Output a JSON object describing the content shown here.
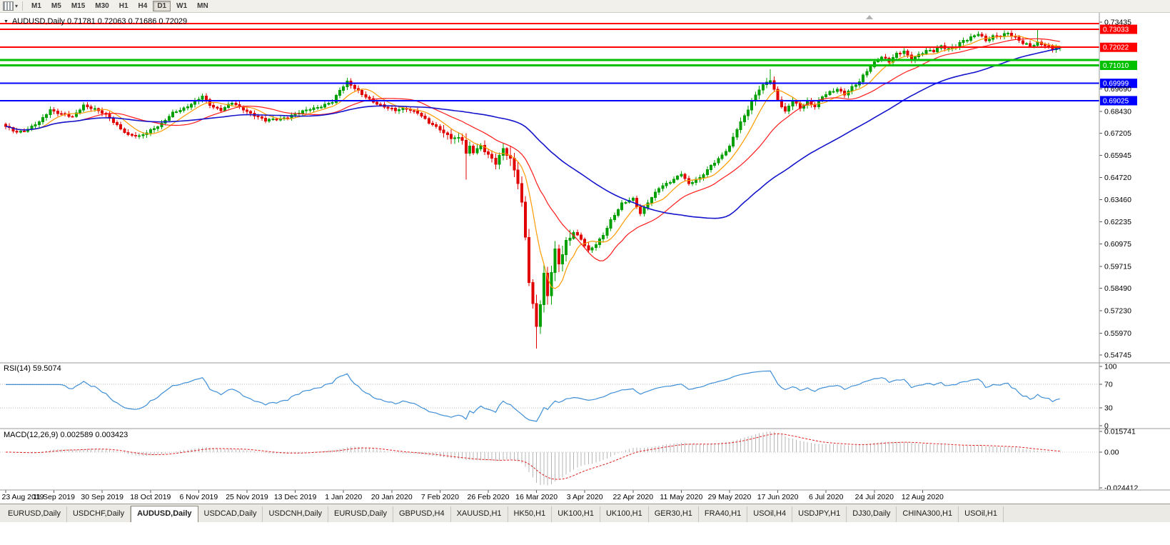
{
  "toolbar": {
    "icons": [
      {
        "name": "chart-window-icon",
        "css": "icon-chart",
        "glyph": ""
      },
      {
        "name": "dropdown-caret-icon",
        "css": "icon-caret",
        "glyph": "▾"
      }
    ],
    "timeframes": [
      {
        "label": "M1",
        "active": false
      },
      {
        "label": "M5",
        "active": false
      },
      {
        "label": "M15",
        "active": false
      },
      {
        "label": "M30",
        "active": false
      },
      {
        "label": "H1",
        "active": false
      },
      {
        "label": "H4",
        "active": false
      },
      {
        "label": "D1",
        "active": true
      },
      {
        "label": "W1",
        "active": false
      },
      {
        "label": "MN",
        "active": false
      }
    ]
  },
  "chart": {
    "title": "AUDUSD,Daily  0.71781 0.72063 0.71686 0.72029",
    "symbol": "AUDUSD",
    "period": "Daily"
  },
  "chart_data": {
    "type": "candlestick",
    "symbol": "AUDUSD",
    "timeframe": "Daily",
    "ohlc_display": {
      "open": "0.71781",
      "high": "0.72063",
      "low": "0.71686",
      "close": "0.72029"
    },
    "last_close": 0.72029,
    "price_range": {
      "top": 0.73435,
      "bottom": 0.54745
    },
    "y_axis_ticks": [
      "0.73435",
      "0.69690",
      "0.68430",
      "0.67205",
      "0.65945",
      "0.64720",
      "0.63460",
      "0.62235",
      "0.60975",
      "0.59715",
      "0.58490",
      "0.57230",
      "0.55970",
      "0.54745"
    ],
    "hlines": [
      {
        "price": 0.7336,
        "color": "#ff0000",
        "width": 2,
        "label": ""
      },
      {
        "price": 0.73033,
        "color": "#ff0000",
        "width": 2,
        "label": "0.73033"
      },
      {
        "price": 0.72022,
        "color": "#ff0000",
        "width": 2,
        "label": "0.72022"
      },
      {
        "price": 0.7131,
        "color": "#00c000",
        "width": 3,
        "label": ""
      },
      {
        "price": 0.7101,
        "color": "#00c000",
        "width": 3,
        "label": "0.71010"
      },
      {
        "price": 0.69999,
        "color": "#0000ff",
        "width": 2,
        "label": "0.69999"
      },
      {
        "price": 0.69025,
        "color": "#0000ff",
        "width": 2,
        "label": "0.69025"
      }
    ],
    "x_labels": [
      "23 Aug 2019",
      "11 Sep 2019",
      "30 Sep 2019",
      "18 Oct 2019",
      "6 Nov 2019",
      "25 Nov 2019",
      "13 Dec 2019",
      "1 Jan 2020",
      "20 Jan 2020",
      "7 Feb 2020",
      "26 Feb 2020",
      "16 Mar 2020",
      "3 Apr 2020",
      "22 Apr 2020",
      "11 May 2020",
      "29 May 2020",
      "17 Jun 2020",
      "6 Jul 2020",
      "24 Jul 2020",
      "12 Aug 2020"
    ],
    "bars_per_label": 13,
    "n_bars": 285,
    "candle_colors": {
      "up": "#00a000",
      "down": "#e00000"
    },
    "moving_averages": [
      {
        "period": 8,
        "color": "#ff9a00"
      },
      {
        "period": 21,
        "color": "#ff1a1a"
      },
      {
        "period": 55,
        "color": "#1414cc"
      }
    ],
    "close_anchors": [
      [
        0,
        0.6755
      ],
      [
        3,
        0.6728
      ],
      [
        6,
        0.6742
      ],
      [
        9,
        0.678
      ],
      [
        12,
        0.6855
      ],
      [
        15,
        0.6828
      ],
      [
        18,
        0.6808
      ],
      [
        21,
        0.688
      ],
      [
        24,
        0.6855
      ],
      [
        27,
        0.682
      ],
      [
        30,
        0.6768
      ],
      [
        33,
        0.6708
      ],
      [
        36,
        0.67
      ],
      [
        39,
        0.674
      ],
      [
        42,
        0.677
      ],
      [
        45,
        0.6832
      ],
      [
        48,
        0.6862
      ],
      [
        51,
        0.6895
      ],
      [
        53,
        0.6925
      ],
      [
        55,
        0.688
      ],
      [
        58,
        0.6852
      ],
      [
        61,
        0.6888
      ],
      [
        64,
        0.6855
      ],
      [
        67,
        0.6822
      ],
      [
        70,
        0.6788
      ],
      [
        73,
        0.68
      ],
      [
        76,
        0.6812
      ],
      [
        79,
        0.6832
      ],
      [
        82,
        0.6858
      ],
      [
        85,
        0.6872
      ],
      [
        88,
        0.6892
      ],
      [
        90,
        0.696
      ],
      [
        92,
        0.7012
      ],
      [
        94,
        0.6975
      ],
      [
        96,
        0.6935
      ],
      [
        99,
        0.6895
      ],
      [
        102,
        0.6872
      ],
      [
        105,
        0.6845
      ],
      [
        108,
        0.6858
      ],
      [
        111,
        0.6838
      ],
      [
        114,
        0.6775
      ],
      [
        117,
        0.6742
      ],
      [
        120,
        0.67
      ],
      [
        123,
        0.668
      ],
      [
        124,
        0.66
      ],
      [
        125,
        0.664
      ],
      [
        126,
        0.6618
      ],
      [
        128,
        0.6655
      ],
      [
        130,
        0.6598
      ],
      [
        132,
        0.6545
      ],
      [
        134,
        0.6628
      ],
      [
        136,
        0.6585
      ],
      [
        138,
        0.646
      ],
      [
        139,
        0.632
      ],
      [
        140,
        0.612
      ],
      [
        141,
        0.588
      ],
      [
        142,
        0.574
      ],
      [
        143,
        0.563
      ],
      [
        144,
        0.578
      ],
      [
        145,
        0.5935
      ],
      [
        146,
        0.582
      ],
      [
        147,
        0.5958
      ],
      [
        148,
        0.6052
      ],
      [
        149,
        0.5975
      ],
      [
        151,
        0.6095
      ],
      [
        153,
        0.6168
      ],
      [
        155,
        0.6128
      ],
      [
        157,
        0.6058
      ],
      [
        159,
        0.6092
      ],
      [
        161,
        0.6148
      ],
      [
        163,
        0.6235
      ],
      [
        166,
        0.6322
      ],
      [
        169,
        0.6348
      ],
      [
        171,
        0.6272
      ],
      [
        173,
        0.6335
      ],
      [
        176,
        0.6408
      ],
      [
        179,
        0.6448
      ],
      [
        182,
        0.6495
      ],
      [
        184,
        0.6432
      ],
      [
        187,
        0.6468
      ],
      [
        190,
        0.6542
      ],
      [
        193,
        0.6592
      ],
      [
        195,
        0.6642
      ],
      [
        197,
        0.6748
      ],
      [
        199,
        0.6822
      ],
      [
        201,
        0.6895
      ],
      [
        203,
        0.6962
      ],
      [
        205,
        0.7005
      ],
      [
        206,
        0.7022
      ],
      [
        208,
        0.6912
      ],
      [
        210,
        0.6838
      ],
      [
        212,
        0.6898
      ],
      [
        214,
        0.6862
      ],
      [
        216,
        0.6905
      ],
      [
        218,
        0.6872
      ],
      [
        220,
        0.6922
      ],
      [
        222,
        0.6945
      ],
      [
        224,
        0.6972
      ],
      [
        226,
        0.6942
      ],
      [
        228,
        0.6975
      ],
      [
        230,
        0.7005
      ],
      [
        232,
        0.7072
      ],
      [
        234,
        0.7122
      ],
      [
        236,
        0.7148
      ],
      [
        238,
        0.7118
      ],
      [
        240,
        0.7162
      ],
      [
        242,
        0.7185
      ],
      [
        244,
        0.7138
      ],
      [
        246,
        0.7155
      ],
      [
        248,
        0.7178
      ],
      [
        250,
        0.7185
      ],
      [
        252,
        0.7215
      ],
      [
        254,
        0.7192
      ],
      [
        256,
        0.7205
      ],
      [
        258,
        0.7238
      ],
      [
        260,
        0.7262
      ],
      [
        262,
        0.7282
      ],
      [
        264,
        0.7235
      ],
      [
        266,
        0.7258
      ],
      [
        268,
        0.7272
      ],
      [
        270,
        0.7288
      ],
      [
        272,
        0.7252
      ],
      [
        274,
        0.7222
      ],
      [
        276,
        0.7208
      ],
      [
        278,
        0.7232
      ],
      [
        280,
        0.7215
      ],
      [
        282,
        0.7188
      ],
      [
        284,
        0.72029
      ]
    ],
    "special_highs": {
      "92": 0.703,
      "124": 0.672,
      "206": 0.7078,
      "278": 0.73
    },
    "special_lows": {
      "124": 0.646,
      "143": 0.551
    },
    "indicators": {
      "rsi": {
        "label": "RSI(14) 59.5074",
        "period": 14,
        "value": 59.5074,
        "levels": [
          "100",
          "70",
          "30",
          "0"
        ],
        "level_lines": [
          70,
          30
        ],
        "color": "#3f8fd6"
      },
      "macd": {
        "label": "MACD(12,26,9) 0.002589 0.003423",
        "fast": 12,
        "slow": 26,
        "signal": 9,
        "main_value": 0.002589,
        "signal_value": 0.003423,
        "axis_labels": [
          "0.015741",
          "0.00",
          "-0.024412"
        ],
        "hist_color": "#b6b6b6",
        "signal_color": "#e02020"
      }
    }
  },
  "tabs": [
    {
      "label": "EURUSD,Daily",
      "active": false
    },
    {
      "label": "USDCHF,Daily",
      "active": false
    },
    {
      "label": "AUDUSD,Daily",
      "active": true
    },
    {
      "label": "USDCAD,Daily",
      "active": false
    },
    {
      "label": "USDCNH,Daily",
      "active": false
    },
    {
      "label": "EURUSD,Daily",
      "active": false
    },
    {
      "label": "GBPUSD,H4",
      "active": false
    },
    {
      "label": "XAUUSD,H1",
      "active": false
    },
    {
      "label": "HK50,H1",
      "active": false
    },
    {
      "label": "UK100,H1",
      "active": false
    },
    {
      "label": "UK100,H1",
      "active": false
    },
    {
      "label": "GER30,H1",
      "active": false
    },
    {
      "label": "FRA40,H1",
      "active": false
    },
    {
      "label": "USOil,H4",
      "active": false
    },
    {
      "label": "USDJPY,H1",
      "active": false
    },
    {
      "label": "DJ30,Daily",
      "active": false
    },
    {
      "label": "CHINA300,H1",
      "active": false
    },
    {
      "label": "USOil,H1",
      "active": false
    }
  ]
}
